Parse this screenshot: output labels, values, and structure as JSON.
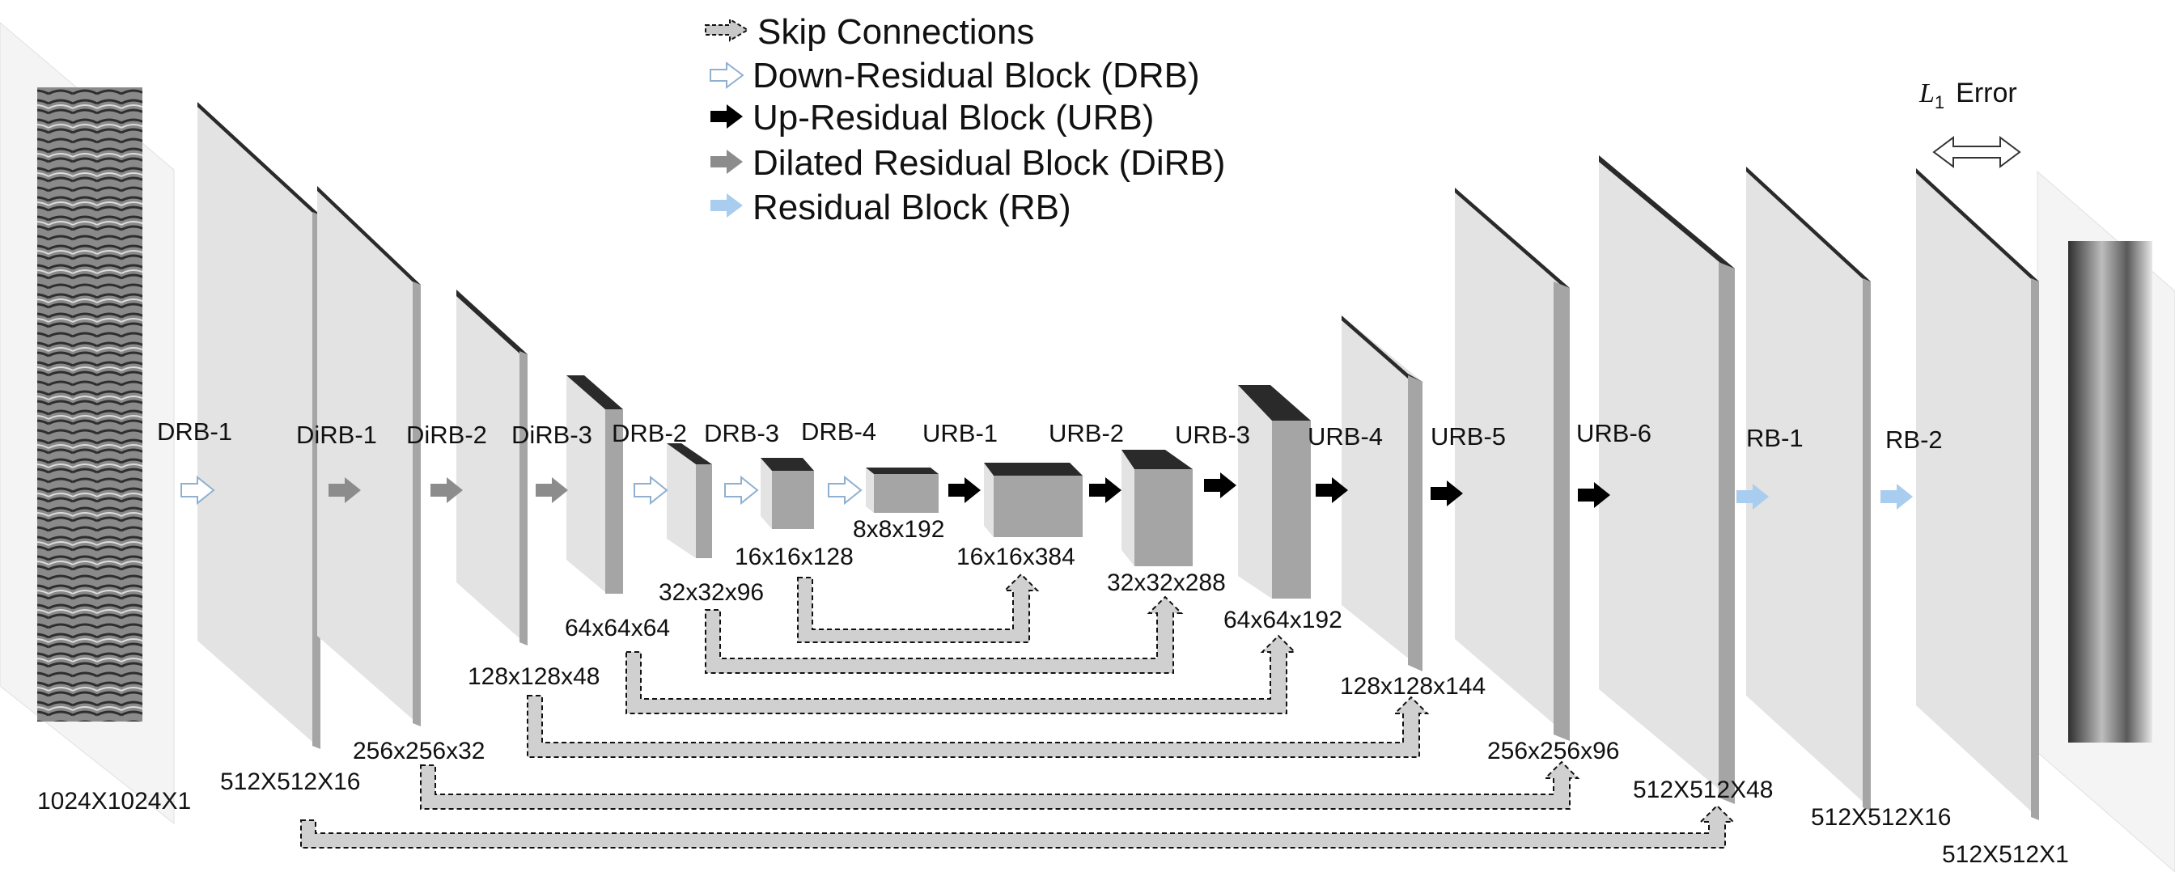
{
  "legend": [
    {
      "id": "skip",
      "label": "Skip Connections"
    },
    {
      "id": "drb",
      "label": "Down-Residual Block (DRB)"
    },
    {
      "id": "urb",
      "label": "Up-Residual Block (URB)"
    },
    {
      "id": "dirb",
      "label": "Dilated Residual Block (DiRB)"
    },
    {
      "id": "rb",
      "label": "Residual Block (RB)"
    }
  ],
  "error_label": {
    "symbol": "L",
    "subscript": "1",
    "text": "Error"
  },
  "blocks": [
    {
      "name": "DRB-1",
      "type": "drb"
    },
    {
      "name": "DiRB-1",
      "type": "dirb"
    },
    {
      "name": "DiRB-2",
      "type": "dirb"
    },
    {
      "name": "DiRB-3",
      "type": "dirb"
    },
    {
      "name": "DRB-2",
      "type": "drb"
    },
    {
      "name": "DRB-3",
      "type": "drb"
    },
    {
      "name": "DRB-4",
      "type": "drb"
    },
    {
      "name": "URB-1",
      "type": "urb"
    },
    {
      "name": "URB-2",
      "type": "urb"
    },
    {
      "name": "URB-3",
      "type": "urb"
    },
    {
      "name": "URB-4",
      "type": "urb"
    },
    {
      "name": "URB-5",
      "type": "urb"
    },
    {
      "name": "URB-6",
      "type": "urb"
    },
    {
      "name": "RB-1",
      "type": "rb"
    },
    {
      "name": "RB-2",
      "type": "rb"
    }
  ],
  "feature_maps": [
    "1024X1024X1",
    "512X512X16",
    "256x256x32",
    "128x128x48",
    "64x64x64",
    "32x32x96",
    "16x16x128",
    "8x8x192",
    "16x16x384",
    "32x32x288",
    "64x64x192",
    "128x128x144",
    "256x256x96",
    "512X512X48",
    "512X512X16",
    "512X512X1"
  ],
  "colors": {
    "layer_face": "#e3e3e3",
    "layer_side": "#a5a5a5",
    "layer_top": "#2a2a2a",
    "skip_fill": "#d0d0d0",
    "drb_arrow": "#ffffff",
    "drb_stroke": "#8fb0d0",
    "urb_arrow": "#000000",
    "dirb_arrow": "#8c8c8c",
    "rb_arrow": "#a9cdee"
  }
}
